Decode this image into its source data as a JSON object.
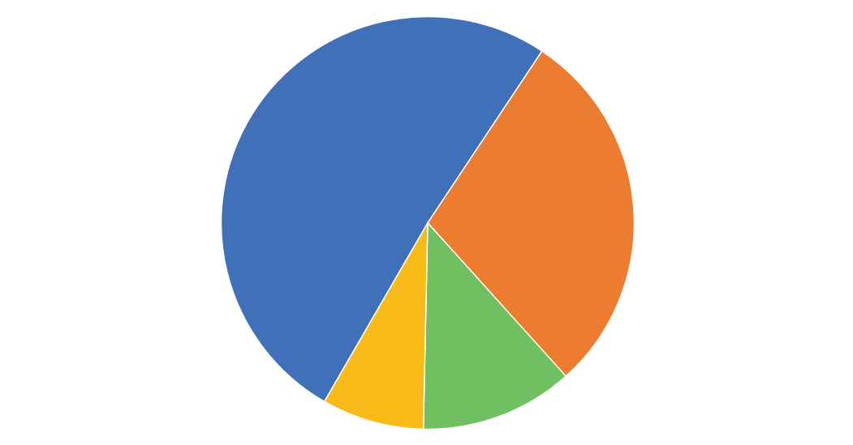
{
  "chart_data": {
    "type": "pie",
    "categories": [
      null,
      null,
      null,
      null
    ],
    "values": [
      51,
      29,
      12,
      8
    ],
    "colors": [
      "#4070b8",
      "#ec7c30",
      "#70bf60",
      "#f8bb18"
    ]
  }
}
